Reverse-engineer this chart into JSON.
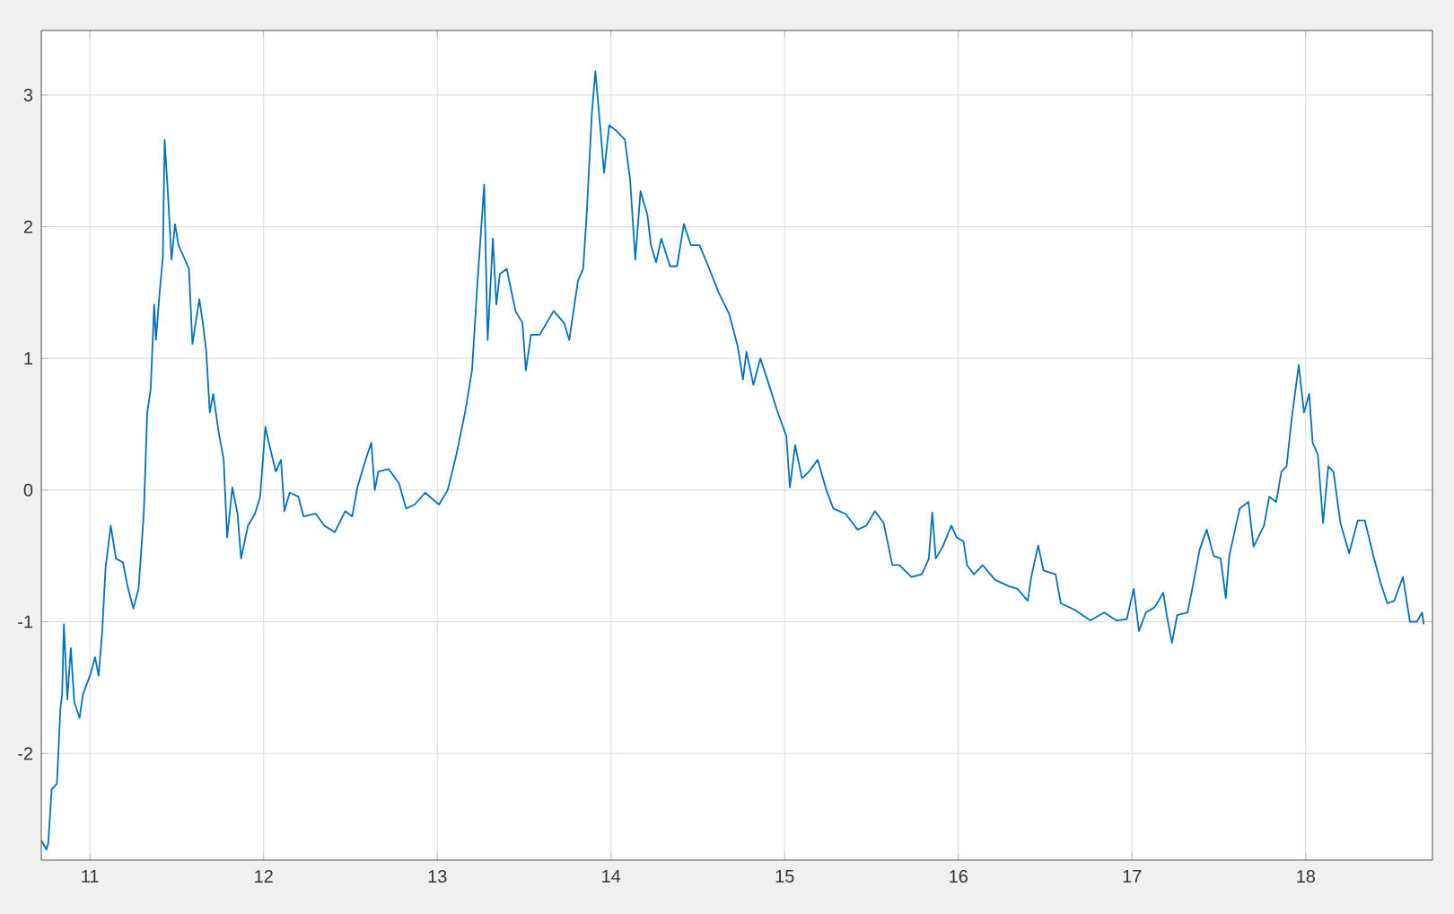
{
  "chart_data": {
    "type": "line",
    "color": "#0072bd",
    "grid": true,
    "marker": "none",
    "line_style": "solid",
    "xlim": [
      10.72,
      18.73
    ],
    "ylim": [
      -2.81,
      3.49
    ],
    "xticks": [
      11,
      12,
      13,
      14,
      15,
      16,
      17,
      18
    ],
    "yticks": [
      -2,
      -1,
      0,
      1,
      2,
      3
    ],
    "x": [
      10.72,
      10.75,
      10.76,
      10.78,
      10.81,
      10.83,
      10.84,
      10.85,
      10.87,
      10.89,
      10.91,
      10.94,
      10.96,
      11.0,
      11.03,
      11.05,
      11.07,
      11.09,
      11.12,
      11.15,
      11.19,
      11.22,
      11.25,
      11.28,
      11.31,
      11.33,
      11.35,
      11.37,
      11.38,
      11.4,
      11.42,
      11.43,
      11.45,
      11.47,
      11.49,
      11.51,
      11.54,
      11.57,
      11.59,
      11.63,
      11.65,
      11.67,
      11.69,
      11.71,
      11.74,
      11.77,
      11.79,
      11.82,
      11.85,
      11.87,
      11.91,
      11.95,
      11.98,
      12.01,
      12.03,
      12.07,
      12.1,
      12.12,
      12.15,
      12.2,
      12.23,
      12.3,
      12.35,
      12.41,
      12.47,
      12.51,
      12.54,
      12.58,
      12.62,
      12.64,
      12.66,
      12.72,
      12.78,
      12.82,
      12.87,
      12.93,
      13.01,
      13.06,
      13.11,
      13.16,
      13.2,
      13.23,
      13.27,
      13.29,
      13.32,
      13.34,
      13.36,
      13.4,
      13.45,
      13.49,
      13.51,
      13.54,
      13.59,
      13.67,
      13.73,
      13.76,
      13.81,
      13.84,
      13.86,
      13.89,
      13.91,
      13.94,
      13.96,
      13.99,
      14.03,
      14.08,
      14.11,
      14.14,
      14.17,
      14.21,
      14.23,
      14.26,
      14.29,
      14.34,
      14.38,
      14.42,
      14.46,
      14.51,
      14.56,
      14.62,
      14.68,
      14.73,
      14.76,
      14.78,
      14.82,
      14.86,
      14.9,
      14.96,
      15.01,
      15.03,
      15.06,
      15.1,
      15.14,
      15.19,
      15.24,
      15.28,
      15.35,
      15.42,
      15.47,
      15.52,
      15.57,
      15.62,
      15.66,
      15.73,
      15.79,
      15.83,
      15.85,
      15.87,
      15.91,
      15.96,
      15.99,
      16.03,
      16.05,
      16.09,
      16.14,
      16.21,
      16.29,
      16.34,
      16.4,
      16.42,
      16.46,
      16.49,
      16.56,
      16.59,
      16.67,
      16.76,
      16.84,
      16.91,
      16.97,
      17.01,
      17.04,
      17.08,
      17.13,
      17.18,
      17.2,
      17.23,
      17.26,
      17.32,
      17.36,
      17.39,
      17.43,
      17.47,
      17.51,
      17.54,
      17.56,
      17.62,
      17.67,
      17.7,
      17.76,
      17.79,
      17.83,
      17.86,
      17.89,
      17.92,
      17.96,
      17.99,
      18.02,
      18.04,
      18.07,
      18.1,
      18.13,
      18.16,
      18.2,
      18.25,
      18.3,
      18.34,
      18.39,
      18.43,
      18.47,
      18.51,
      18.56,
      18.6,
      18.64,
      18.67,
      18.68
    ],
    "values": [
      -2.66,
      -2.73,
      -2.68,
      -2.27,
      -2.23,
      -1.66,
      -1.55,
      -1.02,
      -1.59,
      -1.2,
      -1.61,
      -1.73,
      -1.55,
      -1.41,
      -1.27,
      -1.41,
      -1.09,
      -0.59,
      -0.27,
      -0.52,
      -0.55,
      -0.75,
      -0.9,
      -0.75,
      -0.18,
      0.59,
      0.77,
      1.41,
      1.14,
      1.48,
      1.77,
      2.66,
      2.23,
      1.75,
      2.02,
      1.86,
      1.77,
      1.68,
      1.11,
      1.45,
      1.27,
      1.05,
      0.59,
      0.73,
      0.45,
      0.23,
      -0.36,
      0.02,
      -0.18,
      -0.52,
      -0.27,
      -0.18,
      -0.05,
      0.48,
      0.36,
      0.14,
      0.23,
      -0.16,
      -0.02,
      -0.05,
      -0.2,
      -0.18,
      -0.27,
      -0.32,
      -0.16,
      -0.2,
      0.02,
      0.2,
      0.36,
      0.0,
      0.14,
      0.16,
      0.05,
      -0.14,
      -0.11,
      -0.02,
      -0.11,
      0.0,
      0.27,
      0.59,
      0.91,
      1.55,
      2.32,
      1.14,
      1.91,
      1.41,
      1.64,
      1.68,
      1.36,
      1.27,
      0.91,
      1.18,
      1.18,
      1.36,
      1.27,
      1.14,
      1.59,
      1.68,
      2.09,
      2.86,
      3.18,
      2.73,
      2.41,
      2.77,
      2.73,
      2.66,
      2.36,
      1.75,
      2.27,
      2.09,
      1.86,
      1.73,
      1.91,
      1.7,
      1.7,
      2.02,
      1.86,
      1.86,
      1.7,
      1.5,
      1.34,
      1.09,
      0.84,
      1.05,
      0.8,
      1.0,
      0.84,
      0.59,
      0.41,
      0.02,
      0.34,
      0.09,
      0.14,
      0.23,
      0.0,
      -0.14,
      -0.18,
      -0.3,
      -0.27,
      -0.16,
      -0.25,
      -0.57,
      -0.57,
      -0.66,
      -0.64,
      -0.52,
      -0.17,
      -0.52,
      -0.43,
      -0.27,
      -0.36,
      -0.39,
      -0.57,
      -0.64,
      -0.57,
      -0.68,
      -0.73,
      -0.75,
      -0.84,
      -0.66,
      -0.42,
      -0.61,
      -0.64,
      -0.86,
      -0.91,
      -0.99,
      -0.93,
      -0.99,
      -0.98,
      -0.75,
      -1.07,
      -0.93,
      -0.89,
      -0.78,
      -0.95,
      -1.16,
      -0.95,
      -0.93,
      -0.66,
      -0.45,
      -0.3,
      -0.5,
      -0.52,
      -0.82,
      -0.5,
      -0.14,
      -0.09,
      -0.43,
      -0.27,
      -0.05,
      -0.09,
      0.14,
      0.18,
      0.55,
      0.95,
      0.59,
      0.73,
      0.36,
      0.27,
      -0.25,
      0.18,
      0.14,
      -0.25,
      -0.48,
      -0.23,
      -0.23,
      -0.5,
      -0.7,
      -0.86,
      -0.84,
      -0.66,
      -1.0,
      -1.0,
      -0.93,
      -1.02
    ]
  }
}
